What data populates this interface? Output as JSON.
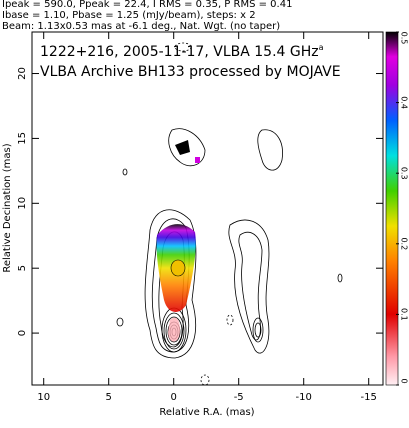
{
  "chart_data": {
    "type": "contour",
    "header": [
      "Ipeak = 590.0, Ppeak = 22.4, I RMS = 0.35, P RMS = 0.41",
      "Ibase = 1.10, Pbase = 1.25 (mJy/beam), steps: x 2",
      "Beam: 1.13x0.53 mas at -6.1 deg., Nat. Wgt. (no taper)"
    ],
    "title": "1222+216, 2005-11-17, VLBA 15.4 GHz",
    "title_superscript": "a",
    "subtitle": "VLBA Archive BH133 processed by MOJAVE",
    "xlabel": "Relative R.A. (mas)",
    "ylabel": "Relative Decination (mas)",
    "xlim": [
      10.9,
      -16.1
    ],
    "xticks": [
      10,
      5,
      0,
      -5,
      -10,
      -15
    ],
    "ylim": [
      -4.0,
      23.2
    ],
    "yticks": [
      0,
      5,
      10,
      15,
      20
    ],
    "colorbar": {
      "lim": [
        0,
        0.5
      ],
      "ticks": [
        0,
        0.1,
        0.2,
        0.3,
        0.4,
        0.5
      ]
    }
  }
}
